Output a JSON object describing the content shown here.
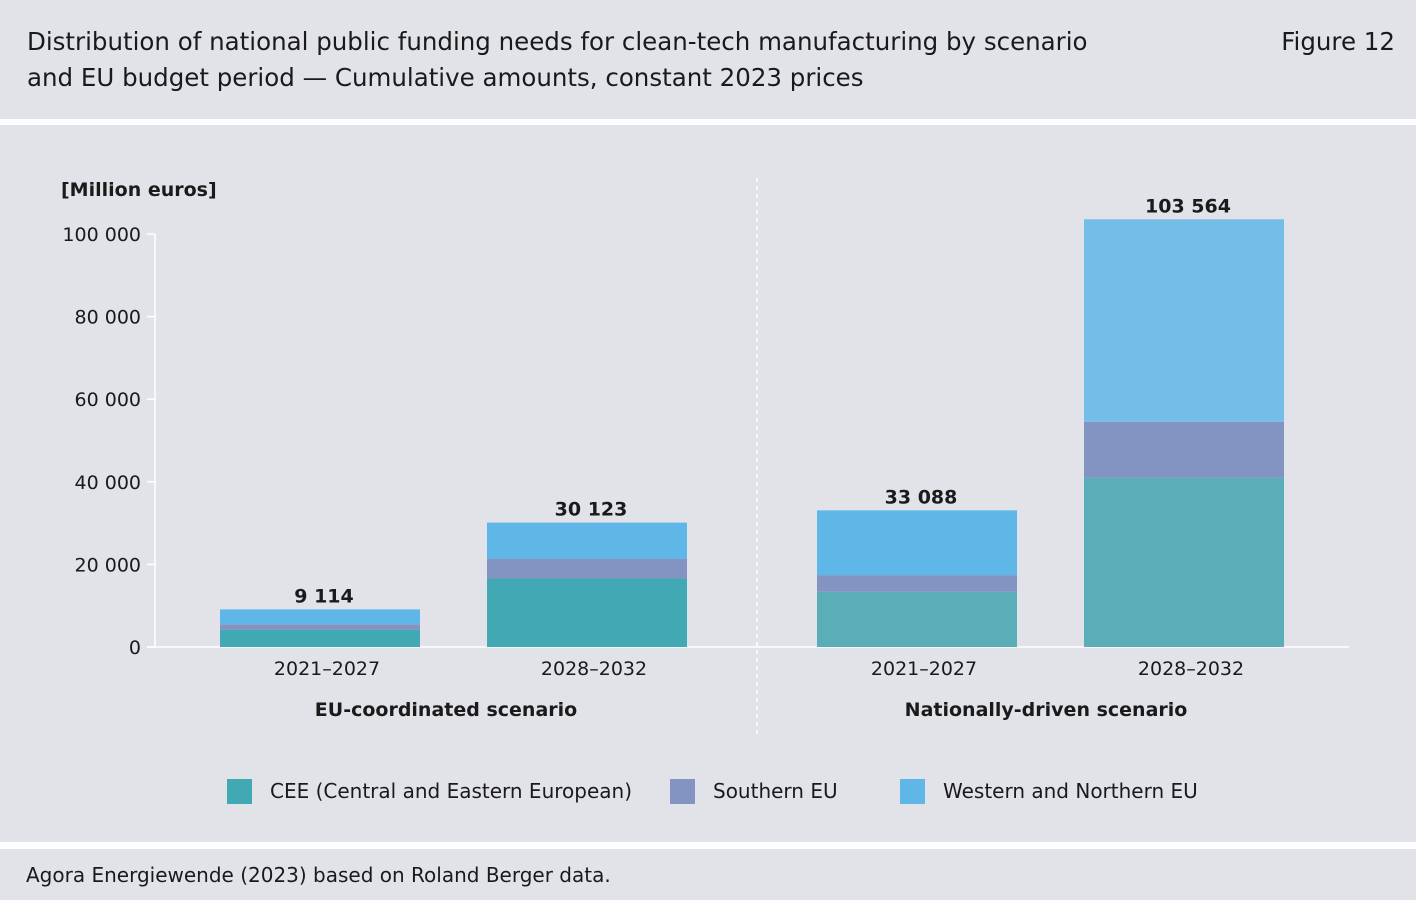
{
  "header": {
    "title_line1": "Distribution of national public funding needs for clean-tech manufacturing by scenario",
    "title_line2": "and EU budget period — Cumulative amounts, constant 2023 prices",
    "figure_label": "Figure 12"
  },
  "footer": {
    "source": "Agora Energiewende (2023) based on Roland Berger data."
  },
  "chart_data": {
    "type": "bar",
    "stacked": true,
    "ylabel": "[Million euros]",
    "ylim": [
      0,
      100000
    ],
    "yticks": [
      0,
      20000,
      40000,
      60000,
      80000,
      100000
    ],
    "ytick_labels": [
      "0",
      "20 000",
      "40 000",
      "60 000",
      "80 000",
      "100 000"
    ],
    "groups": [
      {
        "label": "EU-coordinated scenario",
        "categories": [
          "2021–2027",
          "2028–2032"
        ]
      },
      {
        "label": "Nationally-driven scenario",
        "categories": [
          "2021–2027",
          "2028–2032"
        ]
      }
    ],
    "series": [
      {
        "name": "CEE (Central and Eastern European)",
        "values": [
          4200,
          16600,
          13400,
          41000
        ]
      },
      {
        "name": "Southern EU",
        "values": [
          1300,
          4800,
          4000,
          13500
        ]
      },
      {
        "name": "Western and Northern EU",
        "values": [
          3614,
          8723,
          15688,
          49064
        ]
      }
    ],
    "totals": [
      9114,
      30123,
      33088,
      103564
    ],
    "total_labels": [
      "9 114",
      "30 123",
      "33 088",
      "103 564"
    ],
    "colors": {
      "CEE (Central and Eastern European)": [
        "#40a9b3",
        "#40a9b3",
        "#5aaeb7",
        "#5aaeb7"
      ],
      "Southern EU": [
        "#8394c2",
        "#8394c2",
        "#8394c2",
        "#8394c2"
      ],
      "Western and Northern EU": [
        "#5fb7e8",
        "#5fb7e8",
        "#5fb7e8",
        "#73bde8"
      ]
    },
    "legend": {
      "placement": "bottom",
      "items": [
        {
          "label": "CEE (Central and Eastern European)",
          "color": "#40a9b3"
        },
        {
          "label": "Southern EU",
          "color": "#8394c2"
        },
        {
          "label": "Western and Northern EU",
          "color": "#5fb7e8"
        }
      ]
    },
    "grid": false
  }
}
